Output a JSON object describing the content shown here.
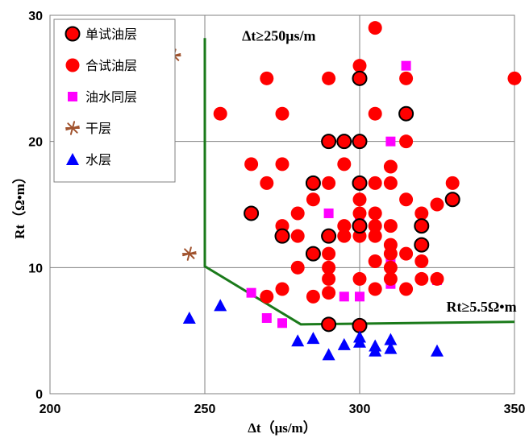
{
  "chart_data": {
    "type": "scatter",
    "xlabel": "Δt（μs/m）",
    "ylabel": "Rt（Ω•m）",
    "xlim": [
      200,
      350
    ],
    "ylim": [
      0,
      30
    ],
    "x_ticks": [
      "200",
      "250",
      "300",
      "350"
    ],
    "y_ticks": [
      "0",
      "10",
      "20",
      "30"
    ],
    "grid": true,
    "legend_position": "top-left",
    "series": [
      {
        "name": "单试油层",
        "marker": "circle-outlined",
        "color": "#ff0000",
        "points": [
          [
            265,
            14.3
          ],
          [
            275,
            12.5
          ],
          [
            285,
            16.7
          ],
          [
            285,
            11.1
          ],
          [
            290,
            20
          ],
          [
            290,
            12.5
          ],
          [
            290,
            5.5
          ],
          [
            295,
            20
          ],
          [
            300,
            25
          ],
          [
            300,
            20
          ],
          [
            300,
            16.7
          ],
          [
            300,
            13.3
          ],
          [
            300,
            5.4
          ],
          [
            315,
            22.2
          ],
          [
            320,
            13.3
          ],
          [
            320,
            11.8
          ],
          [
            330,
            15.4
          ]
        ]
      },
      {
        "name": "合试油层",
        "marker": "circle",
        "color": "#ff0000",
        "points": [
          [
            255,
            22.2
          ],
          [
            265,
            18.2
          ],
          [
            270,
            25
          ],
          [
            270,
            16.7
          ],
          [
            270,
            7.7
          ],
          [
            275,
            22.2
          ],
          [
            275,
            18.2
          ],
          [
            275,
            13.3
          ],
          [
            275,
            8.3
          ],
          [
            280,
            14.3
          ],
          [
            280,
            12.5
          ],
          [
            280,
            10
          ],
          [
            285,
            15.4
          ],
          [
            285,
            7.7
          ],
          [
            290,
            25
          ],
          [
            290,
            16.7
          ],
          [
            290,
            11.1
          ],
          [
            290,
            10
          ],
          [
            290,
            9.1
          ],
          [
            290,
            8
          ],
          [
            295,
            18.2
          ],
          [
            295,
            13.3
          ],
          [
            295,
            12.5
          ],
          [
            300,
            26
          ],
          [
            300,
            15.4
          ],
          [
            300,
            14.3
          ],
          [
            300,
            12.5
          ],
          [
            300,
            9.1
          ],
          [
            305,
            29
          ],
          [
            305,
            22.2
          ],
          [
            305,
            16.7
          ],
          [
            305,
            14.3
          ],
          [
            305,
            13.3
          ],
          [
            305,
            12.5
          ],
          [
            305,
            10.5
          ],
          [
            305,
            8.3
          ],
          [
            310,
            18
          ],
          [
            310,
            16.7
          ],
          [
            310,
            13.3
          ],
          [
            310,
            11.8
          ],
          [
            310,
            11.1
          ],
          [
            310,
            10
          ],
          [
            310,
            9.1
          ],
          [
            315,
            25
          ],
          [
            315,
            20
          ],
          [
            315,
            15.4
          ],
          [
            315,
            11.1
          ],
          [
            315,
            8.3
          ],
          [
            320,
            14.3
          ],
          [
            320,
            13.3
          ],
          [
            320,
            10.5
          ],
          [
            320,
            9.1
          ],
          [
            325,
            15
          ],
          [
            325,
            9.1
          ],
          [
            330,
            16.7
          ],
          [
            350,
            25
          ]
        ]
      },
      {
        "name": "油水同层",
        "marker": "square",
        "color": "#ff00ff",
        "points": [
          [
            265,
            8
          ],
          [
            270,
            6
          ],
          [
            275,
            5.6
          ],
          [
            285,
            11.1
          ],
          [
            290,
            14.3
          ],
          [
            290,
            11.1
          ],
          [
            295,
            7.7
          ],
          [
            300,
            14
          ],
          [
            300,
            7.7
          ],
          [
            310,
            20
          ],
          [
            310,
            10.5
          ],
          [
            310,
            8.7
          ],
          [
            315,
            26
          ],
          [
            325,
            9
          ]
        ]
      },
      {
        "name": "干层",
        "marker": "asterisk",
        "color": "#a0522d",
        "points": [
          [
            240,
            26.8
          ],
          [
            245,
            11.1
          ]
        ]
      },
      {
        "name": "水层",
        "marker": "triangle",
        "color": "#0000ff",
        "points": [
          [
            245,
            6
          ],
          [
            255,
            7
          ],
          [
            280,
            4.2
          ],
          [
            285,
            4.4
          ],
          [
            290,
            3.1
          ],
          [
            295,
            3.9
          ],
          [
            300,
            4.5
          ],
          [
            300,
            4.1
          ],
          [
            305,
            3.8
          ],
          [
            305,
            3.4
          ],
          [
            310,
            4.3
          ],
          [
            310,
            3.6
          ],
          [
            325,
            3.4
          ]
        ]
      }
    ],
    "cutoff_line": {
      "color": "#1a7a1a",
      "points": [
        [
          250,
          28.2
        ],
        [
          250,
          10.1
        ],
        [
          281,
          5.5
        ],
        [
          350,
          5.7
        ]
      ]
    },
    "annotations": [
      {
        "text": "Δt≥250μs/m",
        "x": 262,
        "y": 28
      },
      {
        "text": "Rt≥5.5Ω•m",
        "x": 328,
        "y": 6.5
      }
    ]
  }
}
